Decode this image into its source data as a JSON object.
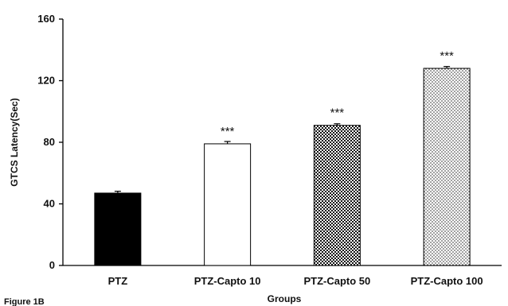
{
  "chart_data": {
    "type": "bar",
    "caption": "Figure 1B",
    "xlabel": "Groups",
    "ylabel": "GTCS Latency(Sec)",
    "ylim": [
      0,
      160
    ],
    "yticks": [
      "0",
      "40",
      "80",
      "120",
      "160"
    ],
    "categories": [
      "PTZ",
      "PTZ-Capto 10",
      "PTZ-Capto 50",
      "PTZ-Capto 100"
    ],
    "values": [
      47,
      79,
      91,
      128
    ],
    "errors": [
      1.2,
      1.5,
      1.0,
      1.2
    ],
    "significance": [
      "",
      "***",
      "***",
      "***"
    ],
    "fills": [
      "solid-black",
      "white",
      "checker",
      "dots"
    ],
    "grid": false,
    "legend": "none"
  }
}
